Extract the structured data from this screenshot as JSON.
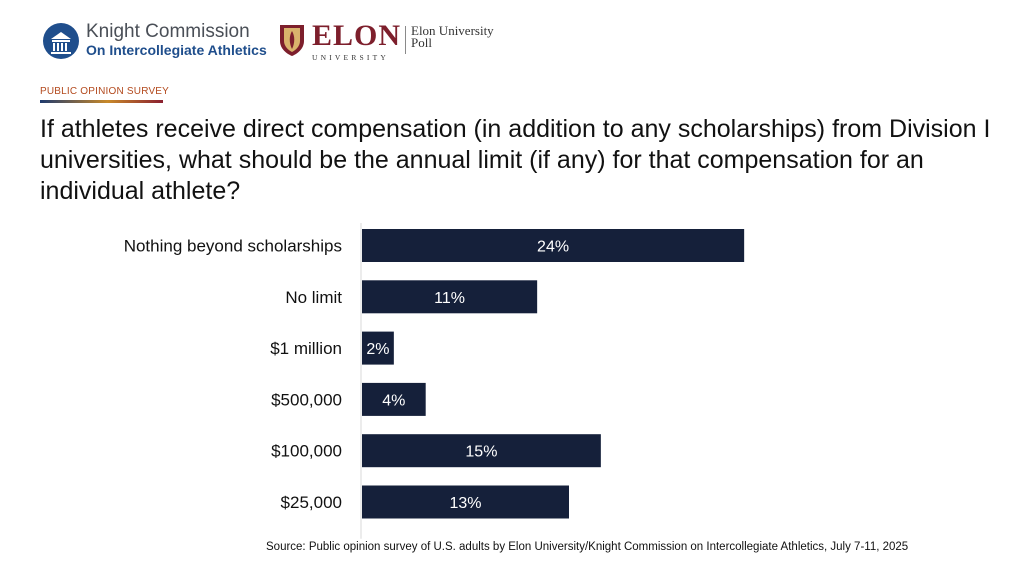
{
  "header": {
    "knight_name": "Knight Commission",
    "knight_sub": "On Intercollegiate Athletics",
    "elon_name": "ELON",
    "elon_university": "UNIVERSITY",
    "elon_poll_line1": "Elon University",
    "elon_poll_line2": "Poll"
  },
  "survey_label": "PUBLIC OPINION SURVEY",
  "source": "Source: Public opinion survey of U.S. adults by Elon University/Knight Commission on Intercollegiate Athletics, July 7-11, 2025",
  "colors": {
    "bar": "#15203a",
    "label_text": "#ffffff",
    "axis": "#d9d9d9"
  },
  "chart_data": {
    "type": "bar",
    "orientation": "horizontal",
    "title": "If athletes receive direct compensation (in addition to any scholarships) from Division I universities, what should be the annual limit (if any) for that compensation for an individual athlete?",
    "categories": [
      "Nothing beyond scholarships",
      "No limit",
      "$1 million",
      "$500,000",
      "$100,000",
      "$25,000"
    ],
    "values": [
      24,
      11,
      2,
      4,
      15,
      13
    ],
    "value_labels": [
      "24%",
      "11%",
      "2%",
      "4%",
      "15%",
      "13%"
    ],
    "xlabel": "",
    "ylabel": "",
    "xlim": [
      0,
      26
    ],
    "grid": false,
    "legend": "none"
  }
}
